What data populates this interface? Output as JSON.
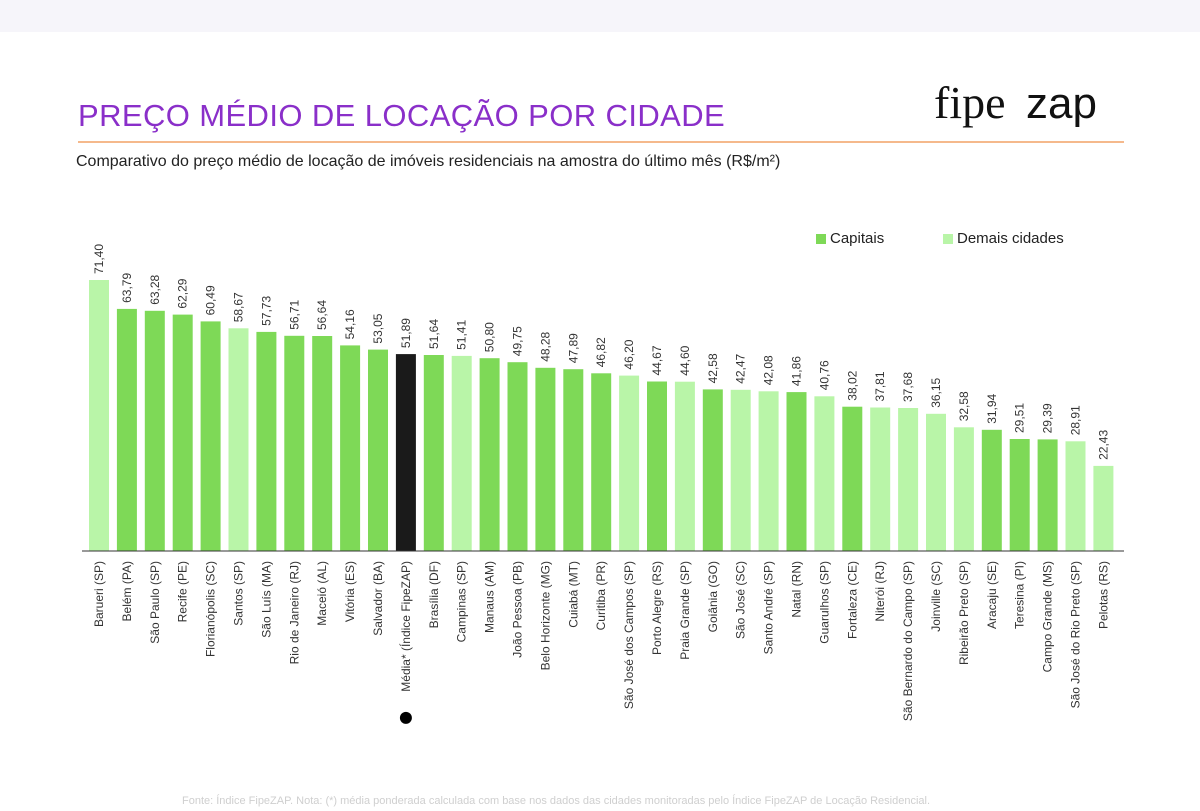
{
  "header": {
    "title": "PREÇO MÉDIO DE LOCAÇÃO POR CIDADE",
    "subtitle": "Comparativo do preço médio de locação de imóveis residenciais na amostra do último mês (R$/m²)",
    "logo_part1": "fipe",
    "logo_part2": "zap"
  },
  "colors": {
    "capital": "#7ed957",
    "other": "#b9f5a8",
    "average": "#1a1a1a",
    "title": "#8a2fc9",
    "rule": "#f5b98c"
  },
  "legend": {
    "capitals_label": "Capitais",
    "others_label": "Demais cidades"
  },
  "chart_data": {
    "type": "bar",
    "categories": [
      "Barueri (SP)",
      "Belém (PA)",
      "São Paulo (SP)",
      "Recife (PE)",
      "Florianópolis (SC)",
      "Santos (SP)",
      "São Luís (MA)",
      "Rio de Janeiro (RJ)",
      "Maceió (AL)",
      "Vitória (ES)",
      "Salvador (BA)",
      "Média* (Índice FipeZAP)",
      "Brasília (DF)",
      "Campinas (SP)",
      "Manaus (AM)",
      "João Pessoa (PB)",
      "Belo Horizonte (MG)",
      "Cuiabá (MT)",
      "Curitiba (PR)",
      "São José dos Campos (SP)",
      "Porto Alegre (RS)",
      "Praia Grande (SP)",
      "Goiânia (GO)",
      "São José (SC)",
      "Santo André (SP)",
      "Natal (RN)",
      "Guarulhos (SP)",
      "Fortaleza (CE)",
      "Niterói (RJ)",
      "São Bernardo do Campo (SP)",
      "Joinville (SC)",
      "Ribeirão Preto (SP)",
      "Aracaju (SE)",
      "Teresina (PI)",
      "Campo Grande (MS)",
      "São José do Rio Preto (SP)",
      "Pelotas (RS)"
    ],
    "values": [
      71.4,
      63.79,
      63.28,
      62.29,
      60.49,
      58.67,
      57.73,
      56.71,
      56.64,
      54.16,
      53.05,
      51.89,
      51.64,
      51.41,
      50.8,
      49.75,
      48.28,
      47.89,
      46.82,
      46.2,
      44.67,
      44.6,
      42.58,
      42.47,
      42.08,
      41.86,
      40.76,
      38.02,
      37.81,
      37.68,
      36.15,
      32.58,
      31.94,
      29.51,
      29.39,
      28.91,
      22.43
    ],
    "value_labels": [
      "71,40",
      "63,79",
      "63,28",
      "62,29",
      "60,49",
      "58,67",
      "57,73",
      "56,71",
      "56,64",
      "54,16",
      "53,05",
      "51,89",
      "51,64",
      "51,41",
      "50,80",
      "49,75",
      "48,28",
      "47,89",
      "46,82",
      "46,20",
      "44,67",
      "44,60",
      "42,58",
      "42,47",
      "42,08",
      "41,86",
      "40,76",
      "38,02",
      "37,81",
      "37,68",
      "36,15",
      "32,58",
      "31,94",
      "29,51",
      "29,39",
      "28,91",
      "22,43"
    ],
    "groups": [
      "other",
      "capital",
      "capital",
      "capital",
      "capital",
      "other",
      "capital",
      "capital",
      "capital",
      "capital",
      "capital",
      "average",
      "capital",
      "other",
      "capital",
      "capital",
      "capital",
      "capital",
      "capital",
      "other",
      "capital",
      "other",
      "capital",
      "other",
      "other",
      "capital",
      "other",
      "capital",
      "other",
      "other",
      "other",
      "other",
      "capital",
      "capital",
      "capital",
      "other",
      "other"
    ],
    "ylim": [
      0,
      75
    ],
    "grid": false,
    "legend_position": "top-right"
  },
  "footer": {
    "note": "Fonte: Índice FipeZAP. Nota: (*) média ponderada calculada com base nos dados das cidades monitoradas pelo Índice FipeZAP de Locação Residencial."
  }
}
